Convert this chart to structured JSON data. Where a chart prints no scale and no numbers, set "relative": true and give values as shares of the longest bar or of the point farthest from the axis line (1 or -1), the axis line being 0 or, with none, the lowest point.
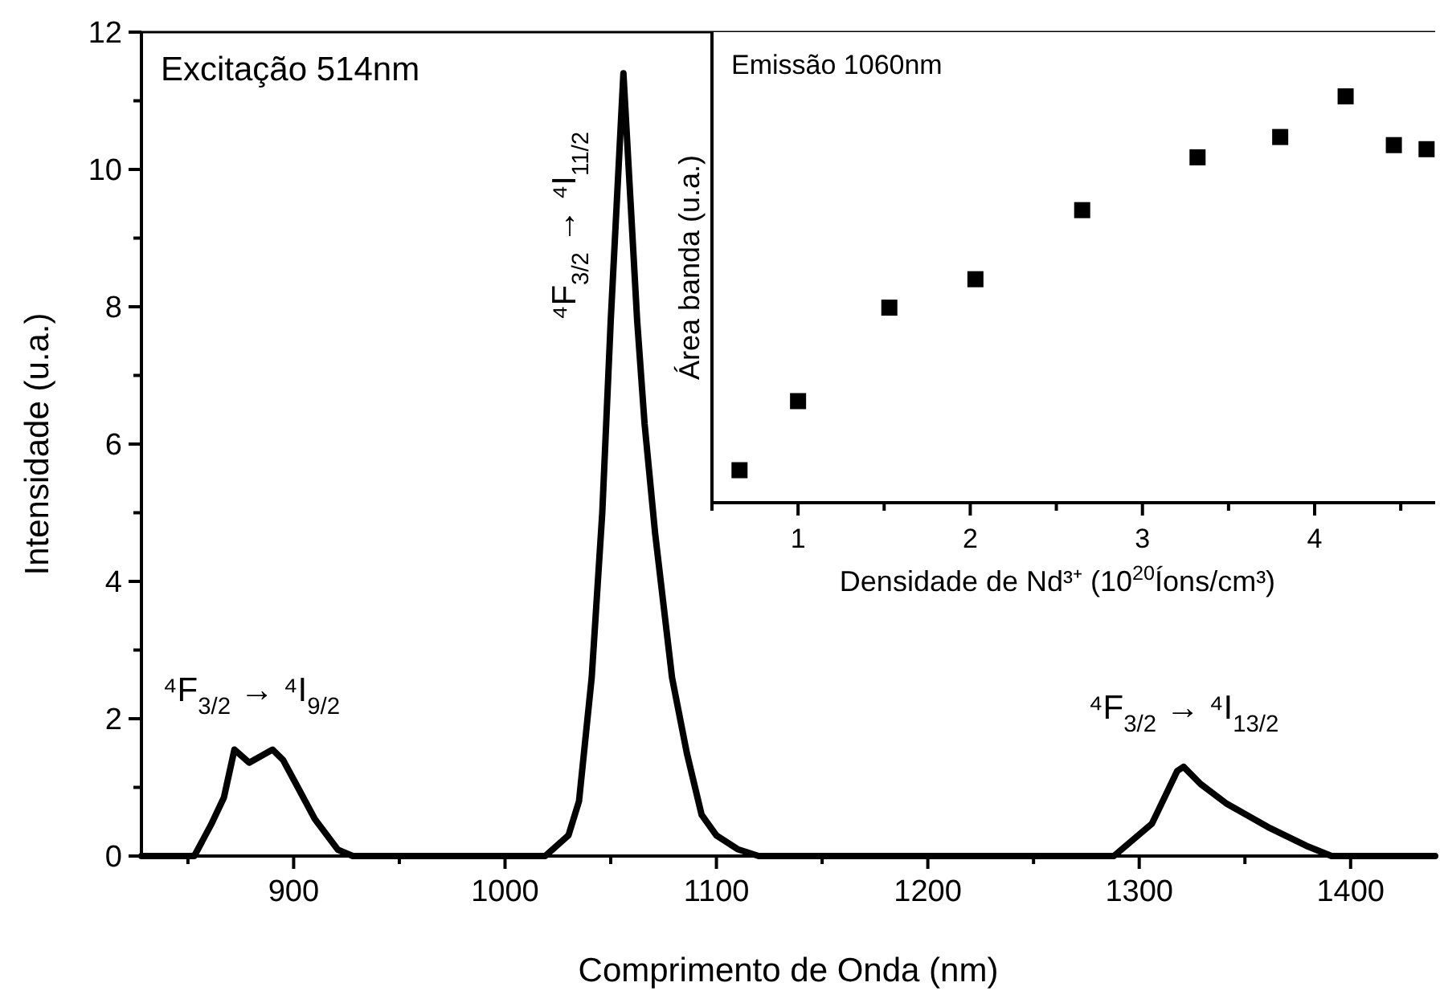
{
  "chart_data": [
    {
      "type": "line",
      "xlabel": "Comprimento de Onda (nm)",
      "ylabel": "Intensidade (u.a.)",
      "xlim": [
        828,
        1440
      ],
      "xticks": [
        {
          "value": 850,
          "label": null
        },
        900,
        {
          "value": 950,
          "label": null
        },
        1000,
        {
          "value": 1050,
          "label": null
        },
        1100,
        {
          "value": 1150,
          "label": null
        },
        1200,
        {
          "value": 1250,
          "label": null
        },
        1300,
        {
          "value": 1350,
          "label": null
        },
        1400
      ],
      "ylim": [
        0,
        12
      ],
      "yticks": [
        0,
        {
          "value": 1,
          "label": null
        },
        2,
        {
          "value": 3,
          "label": null
        },
        4,
        {
          "value": 5,
          "label": null
        },
        6,
        {
          "value": 7,
          "label": null
        },
        8,
        {
          "value": 9,
          "label": null
        },
        10,
        {
          "value": 11,
          "label": null
        },
        12
      ],
      "series": [
        {
          "color": "#000000",
          "x": [
            828,
            853,
            861,
            867,
            872,
            879,
            890,
            895,
            902,
            910,
            921,
            928,
            1019,
            1030,
            1035,
            1041,
            1046,
            1050,
            1056,
            1062.5,
            1066,
            1071,
            1079,
            1086,
            1093,
            1100,
            1110,
            1120,
            1288,
            1306,
            1318,
            1321,
            1329,
            1341,
            1361,
            1379,
            1391,
            1440
          ],
          "values": [
            0,
            0,
            0.46,
            0.85,
            1.55,
            1.36,
            1.55,
            1.4,
            1.0,
            0.54,
            0.09,
            0,
            0,
            0.3,
            0.8,
            2.6,
            5,
            7.8,
            11.4,
            7.8,
            6.3,
            4.7,
            2.6,
            1.5,
            0.6,
            0.3,
            0.1,
            0,
            0,
            0.47,
            1.24,
            1.3,
            1.05,
            0.77,
            0.42,
            0.15,
            0,
            0
          ]
        }
      ],
      "annotations": [
        "Excitação 514nm",
        {
          "text": "⁴F$_{3/2}$ → ⁴I$_{9/2}$",
          "x": 880,
          "y": 1.55
        },
        {
          "text": "⁴F$_{3/2}$ → ⁴I$_{11/2}$",
          "x": 1056,
          "y": 11.4
        },
        {
          "text": "⁴F$_{3/2}$ → ⁴I$_{13/2}$",
          "x": 1321,
          "y": 1.3
        }
      ],
      "grid": false,
      "marker": "none",
      "line_style": "solid"
    },
    {
      "type": "scatter",
      "xlabel": "Densidade de Nd³⁺ (10$^{20}$Íons/cm³)",
      "ylabel": "Área banda (u.a.)",
      "relative": true,
      "xlim": [
        0.5,
        4.7
      ],
      "xticks": [
        {
          "value": 0.5,
          "label": null
        },
        1,
        {
          "value": 1.5,
          "label": null
        },
        2,
        {
          "value": 2.5,
          "label": null
        },
        3,
        {
          "value": 3.5,
          "label": null
        },
        4,
        {
          "value": 4.5,
          "label": null
        }
      ],
      "series": [
        {
          "color": "#000000",
          "x": [
            0.66,
            1.0,
            1.53,
            2.03,
            2.65,
            3.32,
            3.8,
            4.18,
            4.46,
            4.65
          ],
          "values": [
            0.08,
            0.25,
            0.48,
            0.55,
            0.72,
            0.85,
            0.9,
            1.0,
            0.88,
            0.87
          ]
        }
      ],
      "annotations": [
        "Emissão 1060nm"
      ],
      "tick_labels": "x",
      "grid": false,
      "marker": "square"
    }
  ]
}
